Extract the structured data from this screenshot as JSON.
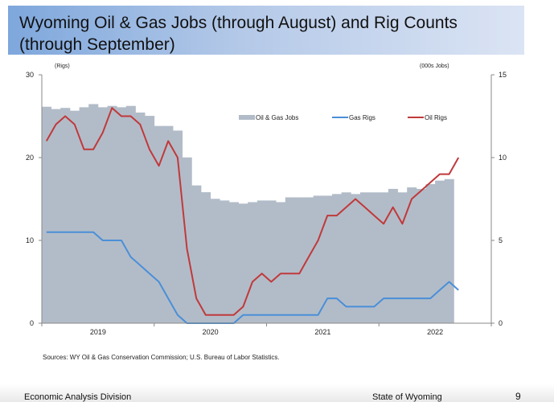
{
  "slide": {
    "title": "Wyoming Oil & Gas Jobs (through August) and Rig Counts (through September)",
    "sources": "Sources: WY Oil & Gas Conservation Commission; U.S. Bureau of Labor Statistics.",
    "footer_left": "Economic Analysis Division",
    "footer_center": "State of Wyoming",
    "page_number": "9"
  },
  "chart_data": {
    "type": "bar+line",
    "x_start": "2019-01",
    "x_end": "2022-12",
    "x_tick_labels": [
      "2019",
      "2020",
      "2021",
      "2022"
    ],
    "left_axis": {
      "label": "(Rigs)",
      "ylim": [
        0,
        30
      ],
      "ticks": [
        "0",
        "10",
        "20",
        "30"
      ]
    },
    "right_axis": {
      "label": "(000s Jobs)",
      "ylim": [
        0,
        15
      ],
      "ticks": [
        "0",
        "5",
        "10",
        "15"
      ]
    },
    "legend_position": "top-center",
    "grid": false,
    "series": [
      {
        "name": "Oil & Gas Jobs",
        "type": "bar",
        "axis": "right",
        "color": "#b2bcc8",
        "values": [
          13.07,
          12.93,
          13.0,
          12.83,
          13.04,
          13.23,
          13.04,
          13.12,
          13.04,
          13.12,
          12.72,
          12.52,
          11.91,
          11.91,
          11.63,
          10.01,
          8.32,
          7.91,
          7.51,
          7.41,
          7.31,
          7.22,
          7.31,
          7.41,
          7.41,
          7.31,
          7.6,
          7.6,
          7.6,
          7.7,
          7.7,
          7.8,
          7.9,
          7.8,
          7.9,
          7.9,
          7.9,
          8.11,
          7.9,
          8.2,
          8.11,
          8.4,
          8.61,
          8.7
        ]
      },
      {
        "name": "Gas Rigs",
        "type": "line",
        "axis": "left",
        "color": "#4a8fd8",
        "values": [
          11,
          11,
          11,
          11,
          11,
          11,
          10,
          10,
          10,
          8,
          7,
          6,
          5,
          3,
          1,
          0,
          0,
          0,
          0,
          0,
          0,
          1,
          1,
          1,
          1,
          1,
          1,
          1,
          1,
          1,
          3,
          3,
          2,
          2,
          2,
          2,
          3,
          3,
          3,
          3,
          3,
          3,
          4,
          5,
          4
        ]
      },
      {
        "name": "Oil Rigs",
        "type": "line",
        "axis": "left",
        "color": "#c0393b",
        "values": [
          22,
          24,
          25,
          24,
          21,
          21,
          23,
          26,
          25,
          25,
          24,
          21,
          19,
          22,
          20,
          9,
          3,
          1,
          1,
          1,
          1,
          2,
          5,
          6,
          5,
          6,
          6,
          6,
          8,
          10,
          13,
          13,
          14,
          15,
          14,
          13,
          12,
          14,
          12,
          15,
          16,
          17,
          18,
          18,
          20
        ]
      }
    ]
  }
}
